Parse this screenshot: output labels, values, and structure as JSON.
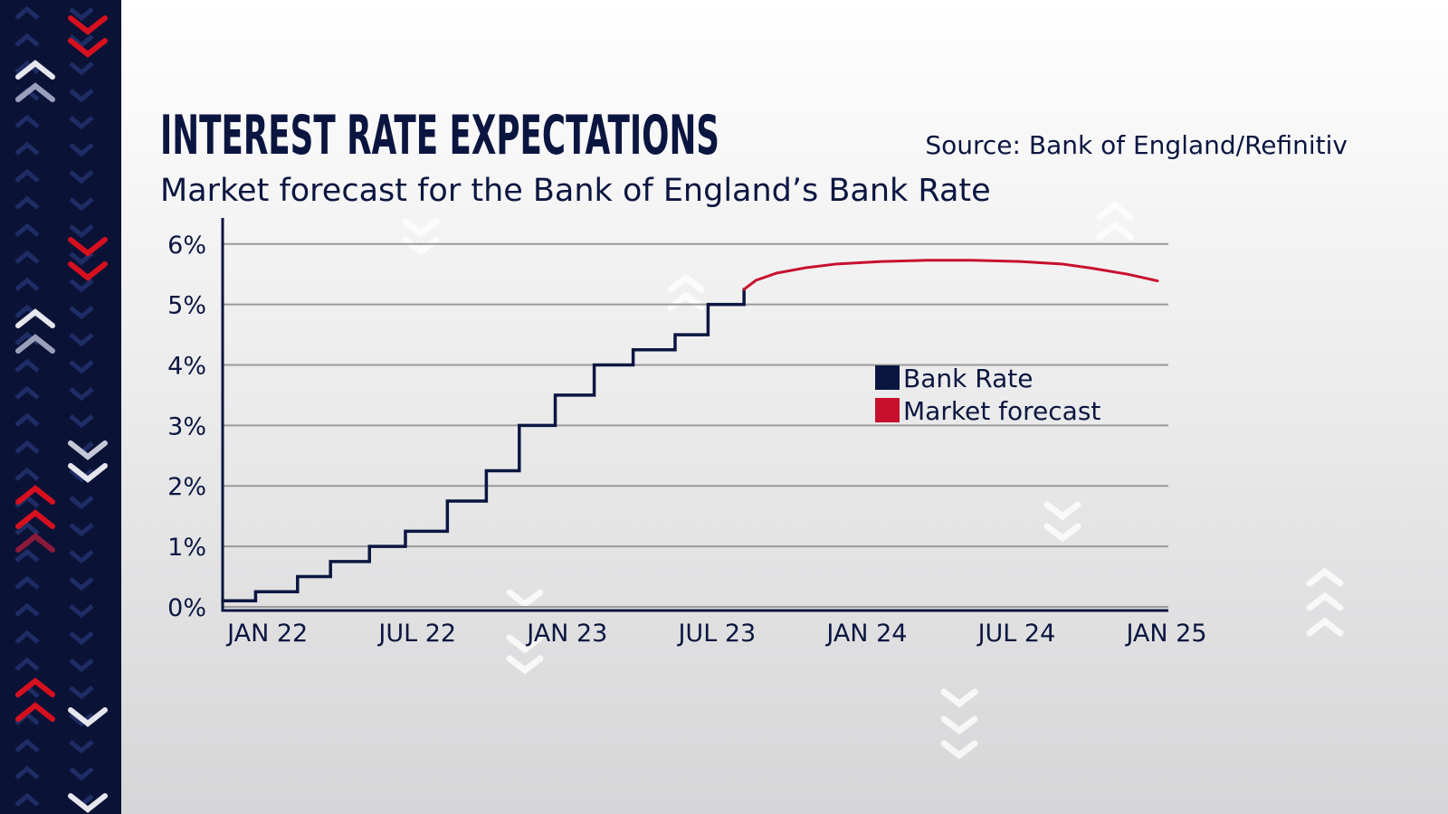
{
  "chart_data": {
    "type": "line",
    "title": "INTEREST RATE EXPECTATIONS",
    "subtitle": "Market forecast for the Bank of England’s Bank Rate",
    "source": "Source: Bank of England/Refinitiv",
    "xlim": [
      2021.85,
      2025.0
    ],
    "xticks": [
      {
        "value": 2022,
        "label": "JAN 22"
      },
      {
        "value": 2022.5,
        "label": "JUL 22"
      },
      {
        "value": 2023,
        "label": "JAN 23"
      },
      {
        "value": 2023.5,
        "label": "JUL 23"
      },
      {
        "value": 2024,
        "label": "JAN 24"
      },
      {
        "value": 2024.5,
        "label": "JUL 24"
      },
      {
        "value": 2025,
        "label": "JAN 25"
      }
    ],
    "ylim": [
      -0.06,
      6.43
    ],
    "yticks": [
      {
        "value": 0,
        "label": "0%"
      },
      {
        "value": 1,
        "label": "1%"
      },
      {
        "value": 2,
        "label": "2%"
      },
      {
        "value": 3,
        "label": "3%"
      },
      {
        "value": 4,
        "label": "4%"
      },
      {
        "value": 5,
        "label": "5%"
      },
      {
        "value": 6,
        "label": "6%"
      }
    ],
    "grid": true,
    "legend": "center-right",
    "series": [
      {
        "name": "Bank Rate",
        "color": "#0b1640",
        "step": "post",
        "x": [
          2021.85,
          2021.96,
          2022.1,
          2022.21,
          2022.34,
          2022.46,
          2022.6,
          2022.73,
          2022.84,
          2022.96,
          2023.09,
          2023.22,
          2023.36,
          2023.47,
          2023.59
        ],
        "values": [
          0.1,
          0.25,
          0.5,
          0.75,
          1,
          1.25,
          1.75,
          2.25,
          3,
          3.5,
          4,
          4.25,
          4.5,
          5,
          5.25
        ]
      },
      {
        "name": "Market forecast",
        "color": "#c8102e",
        "x": [
          2023.59,
          2023.63,
          2023.7,
          2023.8,
          2023.9,
          2024.05,
          2024.2,
          2024.35,
          2024.51,
          2024.65,
          2024.75,
          2024.87,
          2024.97
        ],
        "values": [
          5.25,
          5.4,
          5.52,
          5.61,
          5.67,
          5.71,
          5.73,
          5.73,
          5.71,
          5.67,
          5.6,
          5.5,
          5.39
        ]
      }
    ]
  }
}
